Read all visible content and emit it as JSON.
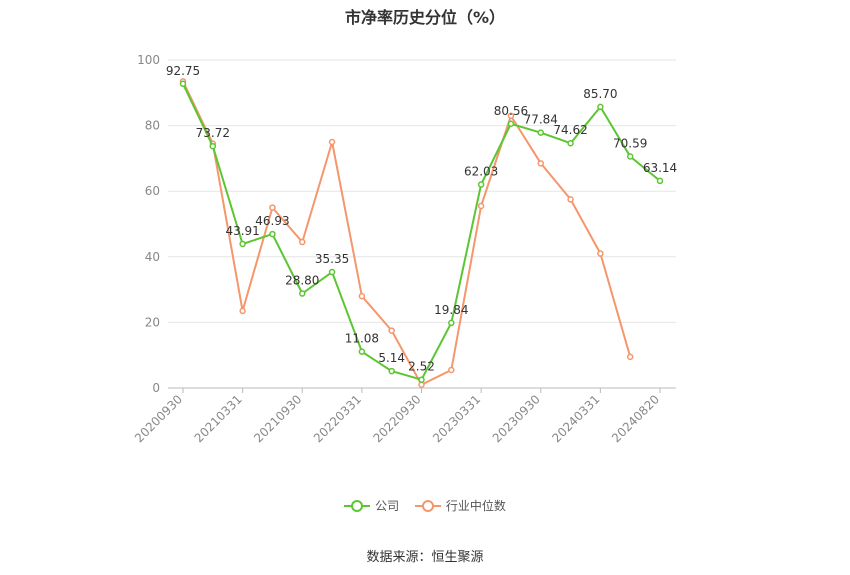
{
  "chart_data": {
    "type": "line",
    "title": "市净率历史分位（%）",
    "xlabel": "",
    "ylabel": "",
    "ylim": [
      0,
      100
    ],
    "yticks": [
      0,
      20,
      40,
      60,
      80,
      100
    ],
    "grid": true,
    "legend_position": "bottom",
    "x": [
      "20200930",
      "20201231",
      "20210331",
      "20210630",
      "20210930",
      "20211231",
      "20220331",
      "20220630",
      "20220930",
      "20221231",
      "20230331",
      "20230630",
      "20230930",
      "20231231",
      "20240331",
      "20240630",
      "20240820"
    ],
    "xtick_labels": [
      "20200930",
      "20210331",
      "20210930",
      "20220331",
      "20220930",
      "20230331",
      "20230930",
      "20240331",
      "20240820"
    ],
    "series": [
      {
        "name": "公司",
        "color": "#5cc632",
        "values": [
          92.75,
          73.72,
          43.91,
          46.93,
          28.8,
          35.35,
          11.08,
          5.14,
          2.52,
          19.84,
          62.03,
          80.56,
          77.84,
          74.62,
          85.7,
          70.59,
          63.14
        ],
        "labels": [
          "92.75",
          "73.72",
          "43.91",
          "46.93",
          "28.80",
          "35.35",
          "11.08",
          "5.14",
          "2.52",
          "19.84",
          "62.03",
          "80.56",
          "77.84",
          "74.62",
          "85.70",
          "70.59",
          "63.14"
        ]
      },
      {
        "name": "行业中位数",
        "color": "#f5966c",
        "values": [
          93.5,
          74.5,
          23.5,
          55.0,
          44.5,
          75.0,
          28.0,
          17.5,
          1.0,
          5.5,
          55.5,
          83.0,
          68.5,
          57.5,
          41.0,
          9.5,
          null
        ]
      }
    ]
  },
  "source": "数据来源：恒生聚源"
}
